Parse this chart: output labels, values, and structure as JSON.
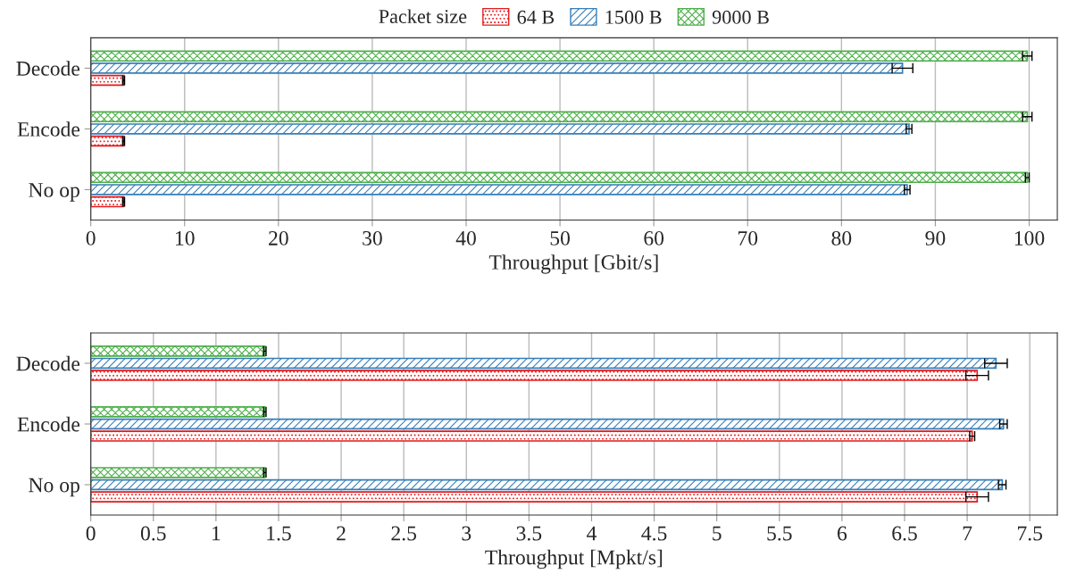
{
  "chart_data": [
    {
      "type": "bar",
      "orientation": "horizontal",
      "legend_title": "Packet size",
      "legend": "top",
      "grid": "x",
      "xlabel": "Throughput [Gbit/s]",
      "categories": [
        "Decode",
        "Encode",
        "No op"
      ],
      "series": [
        {
          "name": "64 B",
          "color": "#e41a1c",
          "values": [
            3.5,
            3.5,
            3.5
          ],
          "errors": [
            0.1,
            0.1,
            0.1
          ]
        },
        {
          "name": "1500 B",
          "color": "#377eb8",
          "values": [
            86.5,
            87.2,
            87.0
          ],
          "errors": [
            1.1,
            0.3,
            0.3
          ]
        },
        {
          "name": "9000 B",
          "color": "#4daf4a",
          "values": [
            99.8,
            99.8,
            99.8
          ],
          "errors": [
            0.5,
            0.5,
            0.2
          ]
        }
      ],
      "xlim": [
        0,
        103
      ],
      "xticks": [
        0,
        10,
        20,
        30,
        40,
        50,
        60,
        70,
        80,
        90,
        100
      ]
    },
    {
      "type": "bar",
      "orientation": "horizontal",
      "grid": "x",
      "xlabel": "Throughput [Mpkt/s]",
      "categories": [
        "Decode",
        "Encode",
        "No op"
      ],
      "series": [
        {
          "color": "#e41a1c",
          "values": [
            7.08,
            7.04,
            7.08
          ],
          "errors": [
            0.09,
            0.02,
            0.09
          ]
        },
        {
          "color": "#377eb8",
          "values": [
            7.23,
            7.29,
            7.28
          ],
          "errors": [
            0.09,
            0.03,
            0.03
          ]
        },
        {
          "color": "#4daf4a",
          "values": [
            1.39,
            1.39,
            1.39
          ],
          "errors": [
            0.01,
            0.01,
            0.01
          ]
        }
      ],
      "xlim": [
        0,
        7.72
      ],
      "xticks": [
        0,
        0.5,
        1,
        1.5,
        2,
        2.5,
        3,
        3.5,
        4,
        4.5,
        5,
        5.5,
        6,
        6.5,
        7,
        7.5
      ]
    }
  ]
}
